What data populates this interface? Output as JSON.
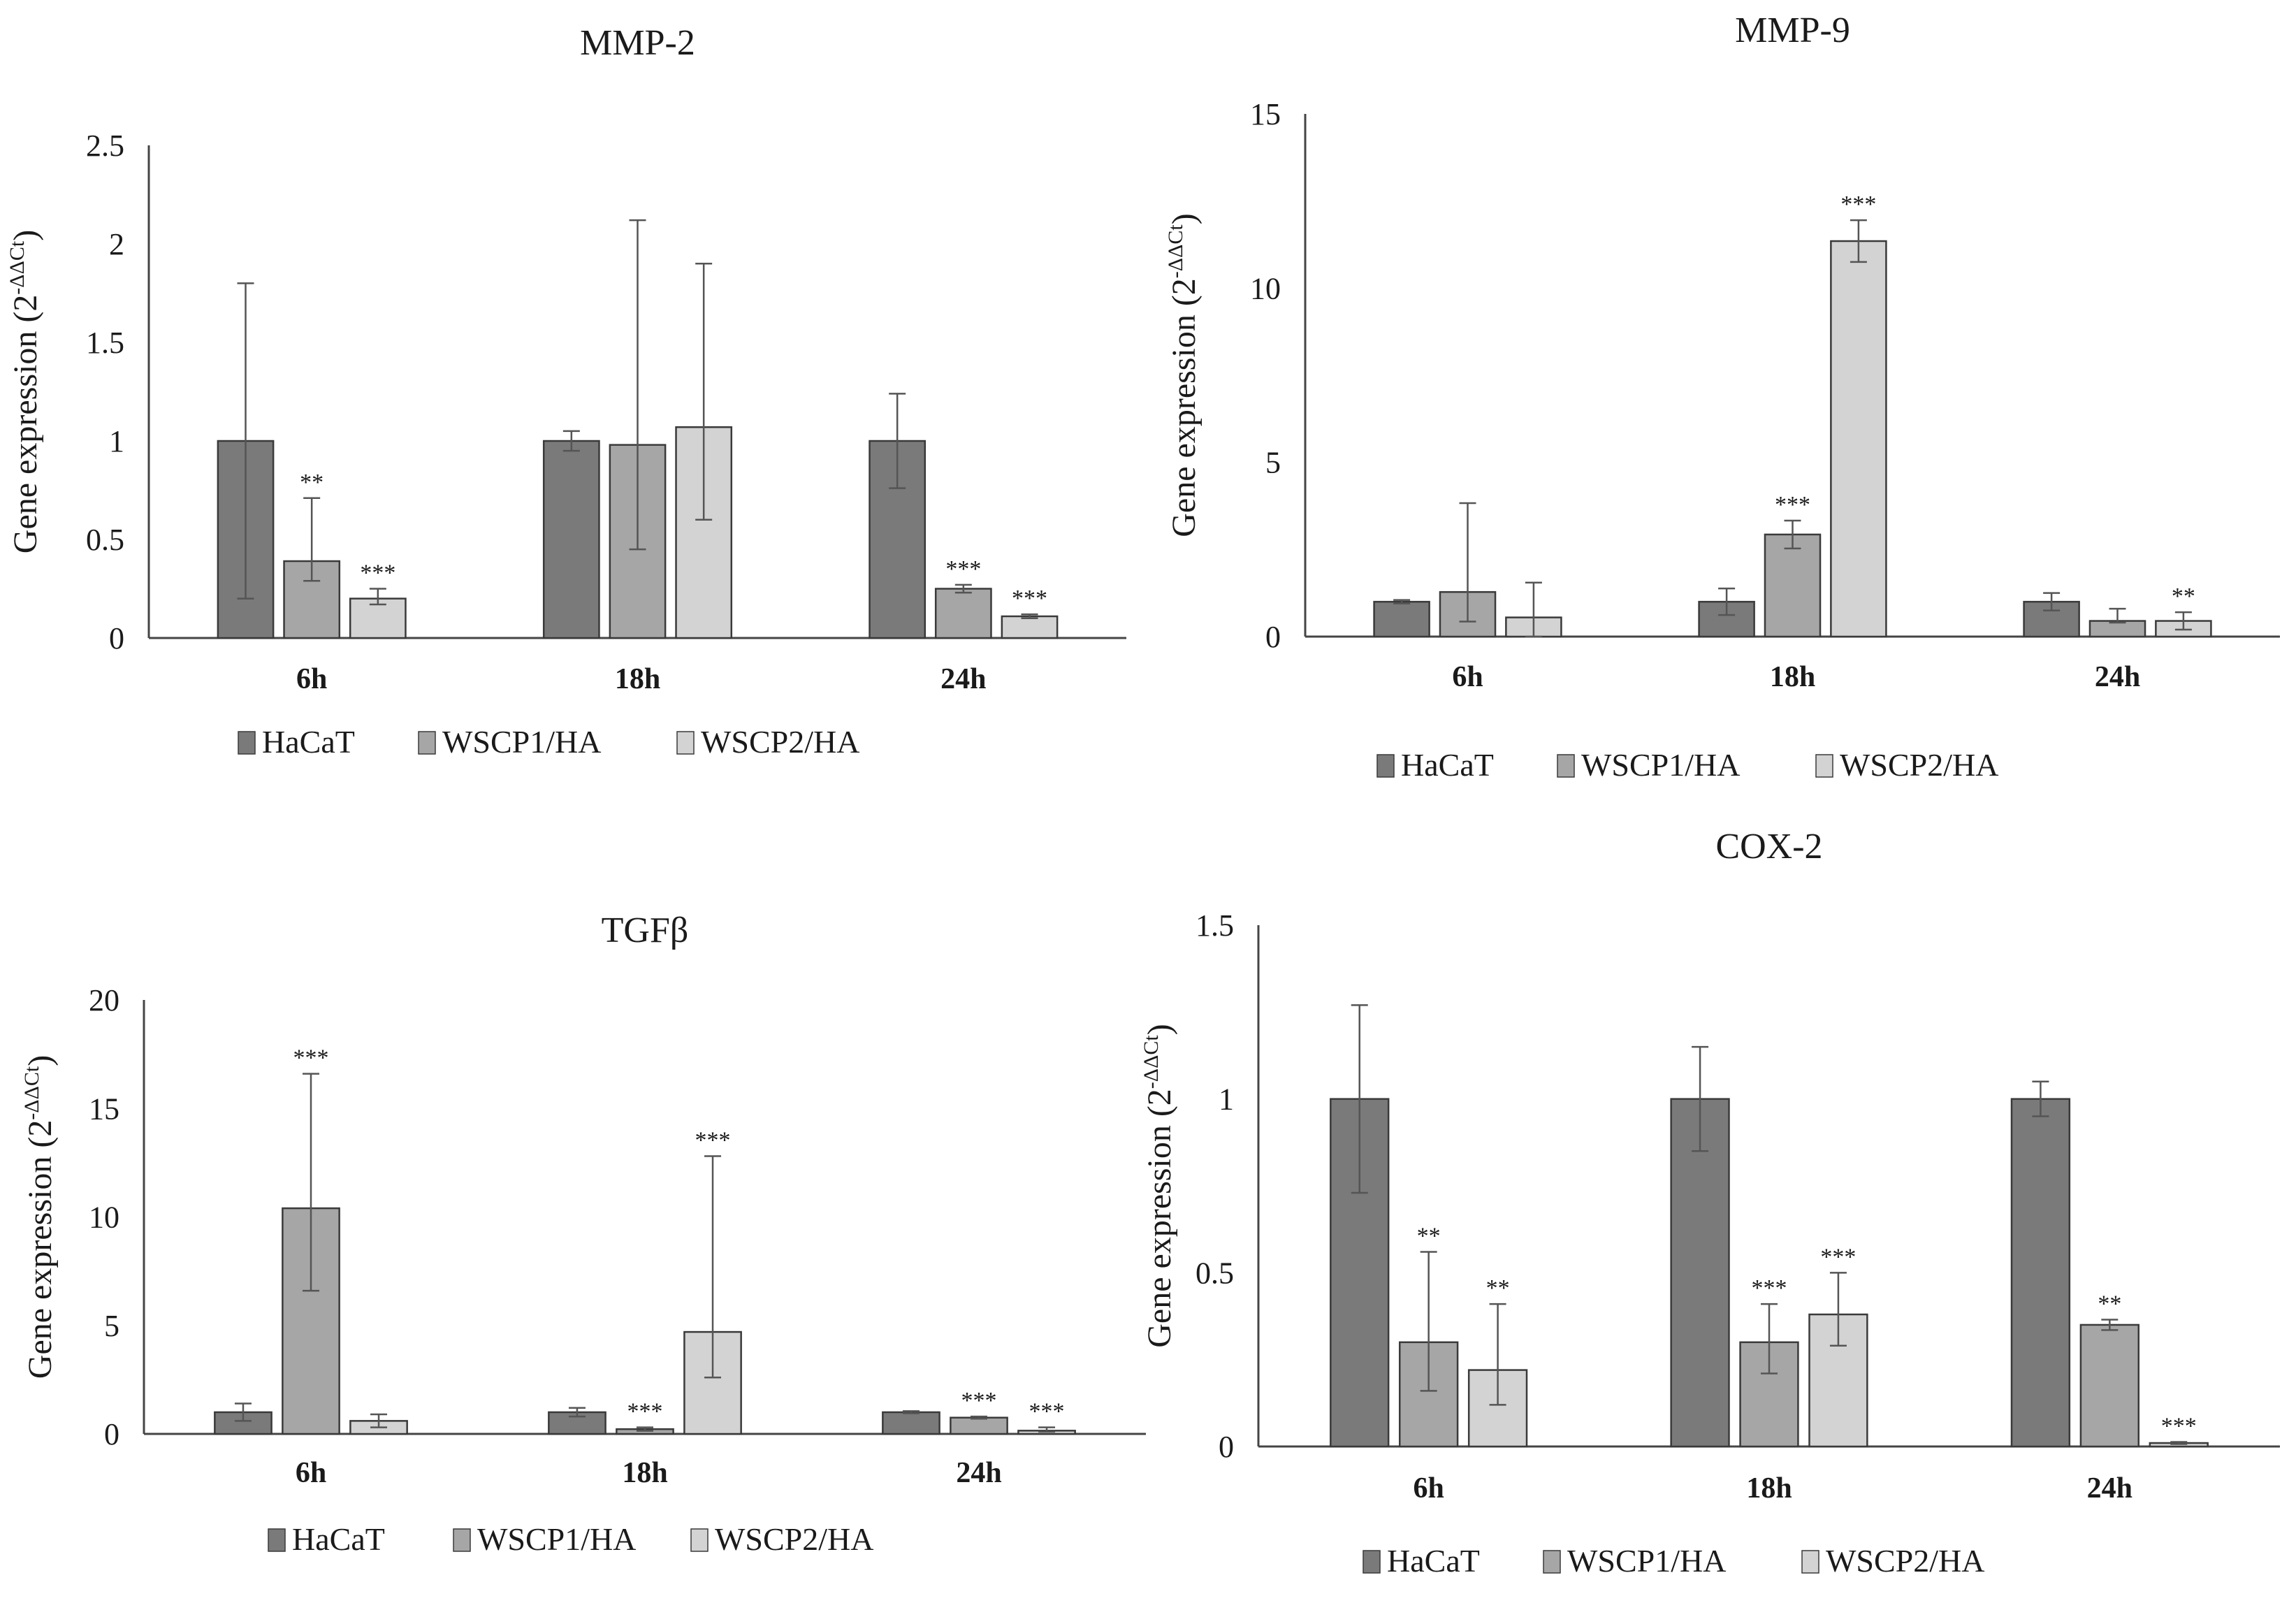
{
  "chart_data": [
    {
      "type": "bar",
      "title": "MMP-2",
      "ylabel": "Gene expression (2",
      "ylabel_sup": "-ΔΔCt",
      "ylabel_close": ")",
      "categories": [
        "6h",
        "18h",
        "24h"
      ],
      "ylim": [
        0,
        2.5
      ],
      "yticks": [
        "0",
        "0.5",
        "1",
        "1.5",
        "2",
        "2.5"
      ],
      "ytick_values": [
        0,
        0.5,
        1,
        1.5,
        2,
        2.5
      ],
      "series": [
        {
          "name": "HaCaT",
          "color": "#7a7a7a",
          "values": [
            1.0,
            1.0,
            1.0
          ],
          "err_low": [
            0.8,
            0.05,
            0.24
          ],
          "err_high": [
            0.8,
            0.05,
            0.24
          ],
          "sig": [
            "",
            "",
            ""
          ]
        },
        {
          "name": "WSCP1/HA",
          "color": "#a6a6a6",
          "values": [
            0.39,
            0.98,
            0.25
          ],
          "err_low": [
            0.1,
            0.53,
            0.02
          ],
          "err_high": [
            0.32,
            1.14,
            0.02
          ],
          "sig": [
            "**",
            "",
            "***"
          ]
        },
        {
          "name": "WSCP2/HA",
          "color": "#d3d3d3",
          "values": [
            0.2,
            1.07,
            0.11
          ],
          "err_low": [
            0.03,
            0.47,
            0.01
          ],
          "err_high": [
            0.05,
            0.83,
            0.01
          ],
          "sig": [
            "***",
            "",
            "***"
          ]
        }
      ]
    },
    {
      "type": "bar",
      "title": "MMP-9",
      "ylabel": "Gene expression (2",
      "ylabel_sup": "-ΔΔCt",
      "ylabel_close": ")",
      "categories": [
        "6h",
        "18h",
        "24h"
      ],
      "ylim": [
        0,
        15
      ],
      "yticks": [
        "0",
        "5",
        "10",
        "15"
      ],
      "ytick_values": [
        0,
        5,
        10,
        15
      ],
      "series": [
        {
          "name": "HaCaT",
          "color": "#7a7a7a",
          "values": [
            1.0,
            1.0,
            1.0
          ],
          "err_low": [
            0.05,
            0.38,
            0.25
          ],
          "err_high": [
            0.05,
            0.38,
            0.25
          ],
          "sig": [
            "",
            "",
            ""
          ]
        },
        {
          "name": "WSCP1/HA",
          "color": "#a6a6a6",
          "values": [
            1.28,
            2.93,
            0.45
          ],
          "err_low": [
            0.85,
            0.4,
            0.05
          ],
          "err_high": [
            2.55,
            0.4,
            0.35
          ],
          "sig": [
            "",
            "***",
            ""
          ]
        },
        {
          "name": "WSCP2/HA",
          "color": "#d3d3d3",
          "values": [
            0.55,
            11.35,
            0.45
          ],
          "err_low": [
            0.55,
            0.6,
            0.25
          ],
          "err_high": [
            1.0,
            0.6,
            0.25
          ],
          "sig": [
            "",
            "***",
            "**"
          ]
        }
      ]
    },
    {
      "type": "bar",
      "title": "TGFβ",
      "ylabel": "Gene expression (2",
      "ylabel_sup": "-ΔΔCt",
      "ylabel_close": ")",
      "categories": [
        "6h",
        "18h",
        "24h"
      ],
      "ylim": [
        0,
        20
      ],
      "yticks": [
        "0",
        "5",
        "10",
        "15",
        "20"
      ],
      "ytick_values": [
        0,
        5,
        10,
        15,
        20
      ],
      "series": [
        {
          "name": "HaCaT",
          "color": "#7a7a7a",
          "values": [
            1.0,
            1.0,
            1.0
          ],
          "err_low": [
            0.4,
            0.2,
            0.05
          ],
          "err_high": [
            0.4,
            0.2,
            0.05
          ],
          "sig": [
            "",
            "",
            ""
          ]
        },
        {
          "name": "WSCP1/HA",
          "color": "#a6a6a6",
          "values": [
            10.4,
            0.22,
            0.75
          ],
          "err_low": [
            3.8,
            0.08,
            0.05
          ],
          "err_high": [
            6.2,
            0.08,
            0.05
          ],
          "sig": [
            "***",
            "***",
            "***"
          ]
        },
        {
          "name": "WSCP2/HA",
          "color": "#d3d3d3",
          "values": [
            0.6,
            4.7,
            0.15
          ],
          "err_low": [
            0.3,
            2.1,
            0.05
          ],
          "err_high": [
            0.3,
            8.1,
            0.15
          ],
          "sig": [
            "",
            "***",
            "***"
          ]
        }
      ]
    },
    {
      "type": "bar",
      "title": "COX-2",
      "ylabel": "Gene expression (2",
      "ylabel_sup": "-ΔΔCt",
      "ylabel_close": ")",
      "categories": [
        "6h",
        "18h",
        "24h"
      ],
      "ylim": [
        0,
        1.5
      ],
      "yticks": [
        "0",
        "0.5",
        "1",
        "1.5"
      ],
      "ytick_values": [
        0,
        0.5,
        1,
        1.5
      ],
      "series": [
        {
          "name": "HaCaT",
          "color": "#7a7a7a",
          "values": [
            1.0,
            1.0,
            1.0
          ],
          "err_low": [
            0.27,
            0.15,
            0.05
          ],
          "err_high": [
            0.27,
            0.15,
            0.05
          ],
          "sig": [
            "",
            "",
            ""
          ]
        },
        {
          "name": "WSCP1/HA",
          "color": "#a6a6a6",
          "values": [
            0.3,
            0.3,
            0.35
          ],
          "err_low": [
            0.14,
            0.09,
            0.015
          ],
          "err_high": [
            0.26,
            0.11,
            0.015
          ],
          "sig": [
            "**",
            "***",
            "**"
          ]
        },
        {
          "name": "WSCP2/HA",
          "color": "#d3d3d3",
          "values": [
            0.22,
            0.38,
            0.01
          ],
          "err_low": [
            0.1,
            0.09,
            0.003
          ],
          "err_high": [
            0.19,
            0.12,
            0.003
          ],
          "sig": [
            "**",
            "***",
            "***"
          ]
        }
      ]
    }
  ]
}
